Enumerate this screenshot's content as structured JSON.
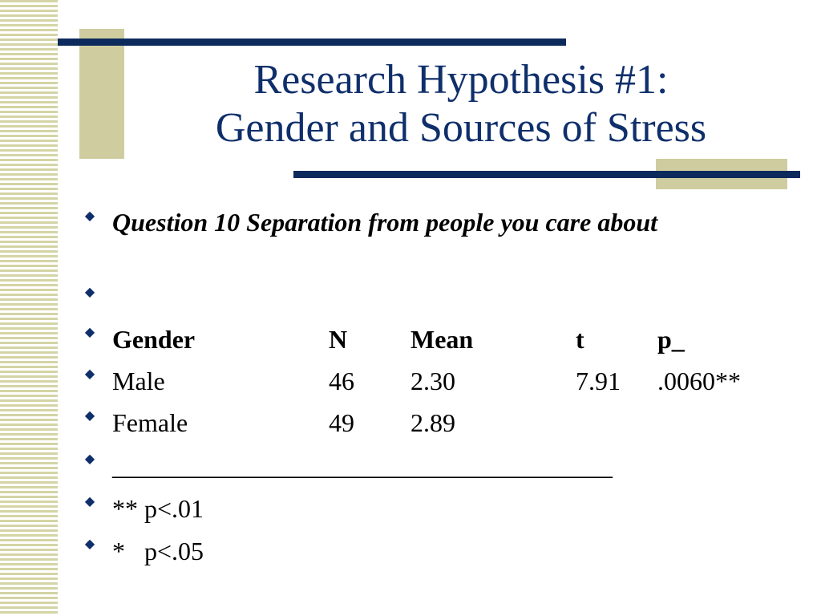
{
  "title": {
    "line1": "Research Hypothesis #1:",
    "line2": "Gender and Sources of Stress"
  },
  "bullets": {
    "question": "Question 10 Separation from people you care about",
    "empty": "",
    "separator": "_______________________________________",
    "note1": "** p<.01",
    "note2": "*   p<.05"
  },
  "table": {
    "header": [
      "Gender",
      "N",
      "Mean",
      "t",
      "p_"
    ],
    "rows": [
      [
        "Male",
        "46",
        "2.30",
        "7.91",
        ".0060**"
      ],
      [
        "Female",
        "49",
        "2.89",
        "",
        ""
      ]
    ]
  },
  "colors": {
    "title": "#0f2f6b",
    "rule": "#0d2a5c",
    "accent": "#cfcd9f"
  },
  "icons": {
    "bullet": "diamond-bullet-icon"
  }
}
